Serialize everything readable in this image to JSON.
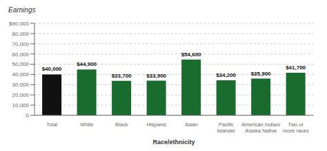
{
  "chart_data": {
    "type": "bar",
    "y_label": "Earnings",
    "x_label": "Race/ethnicity",
    "categories": [
      "Total",
      "White",
      "Black",
      "Hispanic",
      "Asian",
      "Pacific\nIslander",
      "American Indian/\nAlaska Native",
      "Two or\nmore races"
    ],
    "values": [
      40000,
      44900,
      33700,
      33900,
      54600,
      34200,
      35900,
      41700
    ],
    "value_labels": [
      "$40,000",
      "$44,900",
      "$33,700",
      "$33,900",
      "$54,600",
      "$34,200",
      "$35,900",
      "$41,700"
    ],
    "data_labels": true,
    "colors": [
      "#111111",
      "#1a6b2e",
      "#1a6b2e",
      "#1a6b2e",
      "#1a6b2e",
      "#1a6b2e",
      "#1a6b2e",
      "#1a6b2e"
    ],
    "ylim": [
      0,
      90000
    ],
    "yticks": [
      0,
      {
        "value": 10000,
        "label": "10,000"
      },
      {
        "value": 20000,
        "label": "20,000"
      },
      {
        "value": 30000,
        "label": "30,000"
      },
      {
        "value": 40000,
        "label": "40,000"
      },
      {
        "value": 50000,
        "label": "50,000"
      },
      {
        "value": 60000,
        "label": "60,000"
      },
      {
        "value": 70000,
        "label": "70,000"
      },
      {
        "value": 80000,
        "label": "80,000"
      },
      {
        "value": 90000,
        "label": "$90,000"
      }
    ],
    "grid": true
  }
}
